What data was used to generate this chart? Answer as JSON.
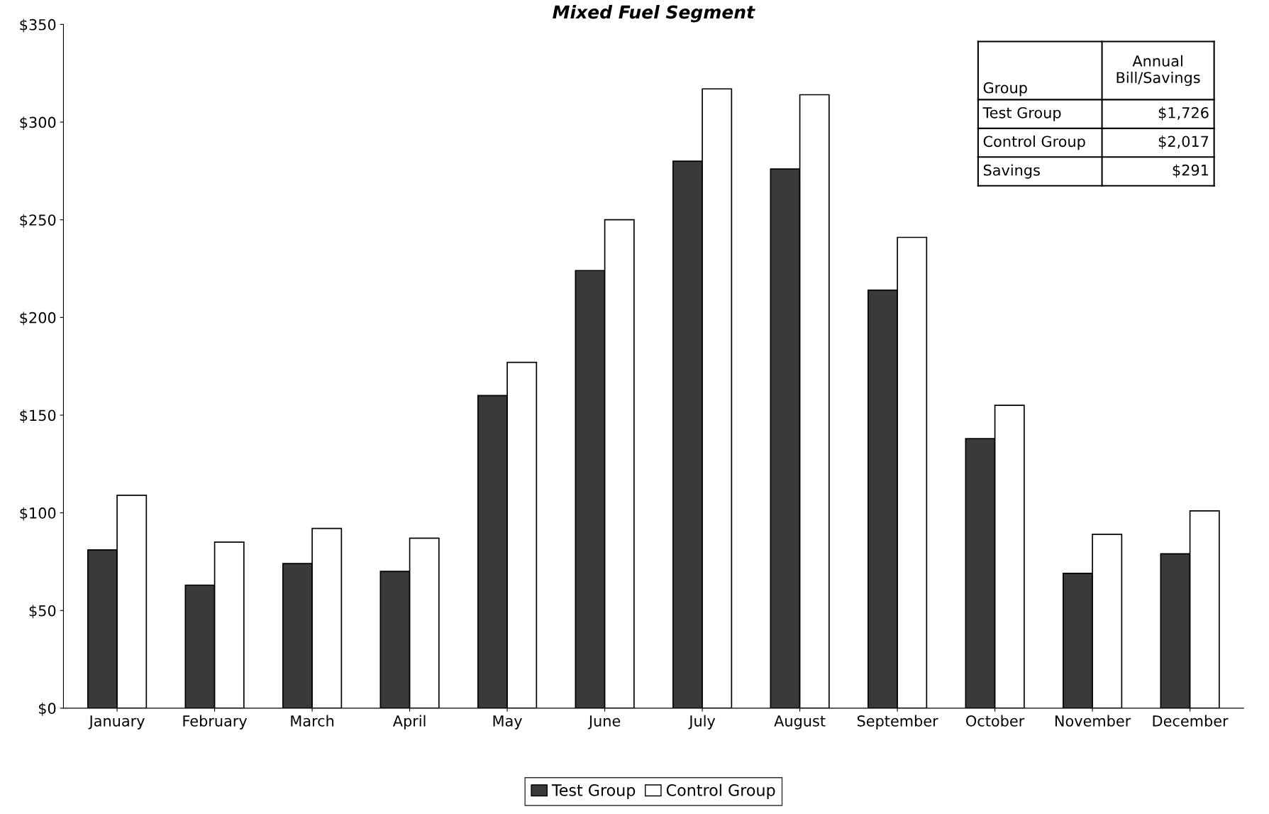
{
  "chart_data": {
    "type": "bar",
    "title": "Mixed Fuel Segment",
    "categories": [
      "January",
      "February",
      "March",
      "April",
      "May",
      "June",
      "July",
      "August",
      "September",
      "October",
      "November",
      "December"
    ],
    "series": [
      {
        "name": "Test Group",
        "color": "#3a3a3a",
        "values": [
          81,
          63,
          74,
          70,
          160,
          224,
          280,
          276,
          214,
          138,
          69,
          79
        ]
      },
      {
        "name": "Control Group",
        "color": "#ffffff",
        "values": [
          109,
          85,
          92,
          87,
          177,
          250,
          317,
          314,
          241,
          155,
          89,
          101
        ]
      }
    ],
    "ylim": [
      0,
      350
    ],
    "yticks": [
      {
        "value": 0,
        "label": "$0"
      },
      {
        "value": 50,
        "label": "$50"
      },
      {
        "value": 100,
        "label": "$100"
      },
      {
        "value": 150,
        "label": "$150"
      },
      {
        "value": 200,
        "label": "$200"
      },
      {
        "value": 250,
        "label": "$250"
      },
      {
        "value": 300,
        "label": "$300"
      },
      {
        "value": 350,
        "label": "$350"
      }
    ],
    "annotations": [
      "Group",
      "Annual\nBill/Savings",
      "Test Group",
      "$1,726",
      "Control Group",
      "$2,017",
      "Savings",
      "$291"
    ],
    "legend": "bottom"
  }
}
